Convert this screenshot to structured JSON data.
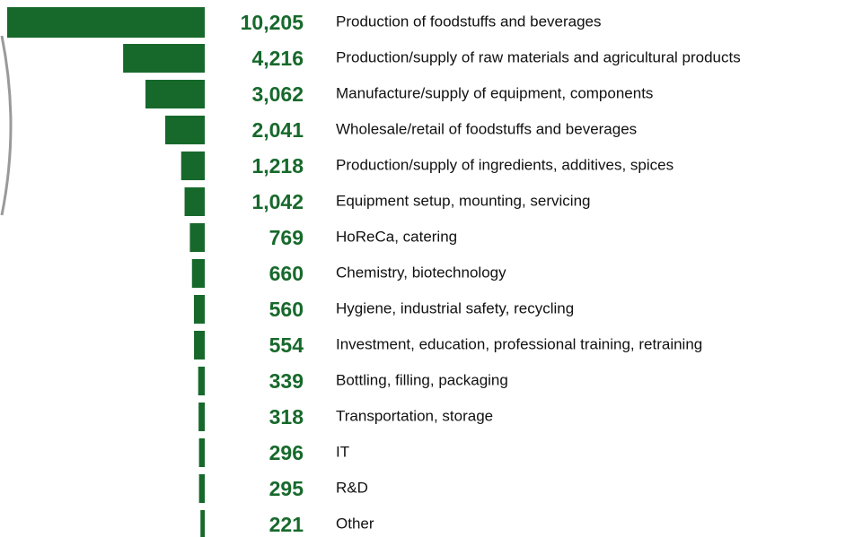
{
  "chart_data": {
    "type": "bar",
    "orientation": "horizontal",
    "color": "#17692b",
    "categories": [
      "Production of foodstuffs and beverages",
      "Production/supply of raw materials and agricultural products",
      "Manufacture/supply of equipment, components",
      "Wholesale/retail of foodstuffs and beverages",
      "Production/supply of ingredients, additives, spices",
      "Equipment setup, mounting, servicing",
      "HoReCa, catering",
      "Chemistry, biotechnology",
      "Hygiene, industrial safety, recycling",
      "Investment, education, professional training, retraining",
      "Bottling, filling, packaging",
      "Transportation, storage",
      "IT",
      "R&D",
      "Other"
    ],
    "values": [
      10205,
      4216,
      3062,
      2041,
      1218,
      1042,
      769,
      660,
      560,
      554,
      339,
      318,
      296,
      295,
      221
    ],
    "value_labels": [
      "10,205",
      "4,216",
      "3,062",
      "2,041",
      "1,218",
      "1,042",
      "769",
      "660",
      "560",
      "554",
      "339",
      "318",
      "296",
      "295",
      "221"
    ]
  }
}
